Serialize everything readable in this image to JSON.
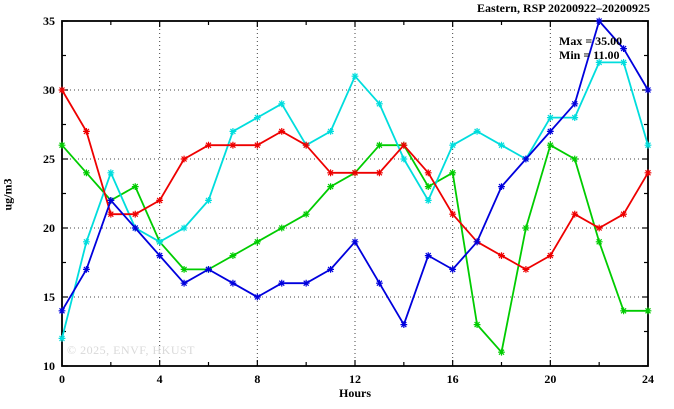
{
  "header": {
    "title": "Eastern, RSP 20200922–20200925"
  },
  "annotation": {
    "max_label": "Max = 35.00",
    "min_label": "Min = 11.00"
  },
  "watermark": "© 2025, ENVF, HKUST",
  "chart_data": {
    "type": "line",
    "title": "Eastern, RSP 20200922–20200925",
    "xlabel": "Hours",
    "ylabel": "ug/m3",
    "xlim": [
      0,
      24
    ],
    "ylim": [
      10,
      35
    ],
    "x_ticks": [
      0,
      4,
      8,
      12,
      16,
      20,
      24
    ],
    "y_ticks": [
      10,
      15,
      20,
      25,
      30,
      35
    ],
    "x_minor_step": 2,
    "y_minor_step": 2.5,
    "grid": true,
    "legend": "none",
    "max": 35.0,
    "min": 11.0,
    "x": [
      0,
      1,
      2,
      3,
      4,
      5,
      6,
      7,
      8,
      9,
      10,
      11,
      12,
      13,
      14,
      15,
      16,
      17,
      18,
      19,
      20,
      21,
      22,
      23,
      24
    ],
    "series": [
      {
        "name": "green-line",
        "color": "#00cc00",
        "values": [
          26,
          24,
          22,
          23,
          19,
          17,
          17,
          18,
          19,
          20,
          21,
          23,
          24,
          26,
          26,
          23,
          24,
          13,
          11,
          20,
          26,
          25,
          19,
          14,
          14
        ]
      },
      {
        "name": "cyan-line",
        "color": "#00dddd",
        "values": [
          12,
          19,
          24,
          20,
          19,
          20,
          22,
          27,
          28,
          29,
          26,
          27,
          31,
          29,
          25,
          22,
          26,
          27,
          26,
          25,
          28,
          28,
          32,
          32,
          26
        ]
      },
      {
        "name": "red-line",
        "color": "#ee0000",
        "values": [
          30,
          27,
          21,
          21,
          22,
          25,
          26,
          26,
          26,
          27,
          26,
          24,
          24,
          24,
          26,
          24,
          21,
          19,
          18,
          17,
          18,
          21,
          20,
          21,
          24
        ]
      },
      {
        "name": "blue-line",
        "color": "#0000dd",
        "values": [
          14,
          17,
          22,
          20,
          18,
          16,
          17,
          16,
          15,
          16,
          16,
          17,
          19,
          16,
          13,
          18,
          17,
          19,
          23,
          25,
          27,
          29,
          35,
          33,
          30
        ]
      }
    ]
  }
}
